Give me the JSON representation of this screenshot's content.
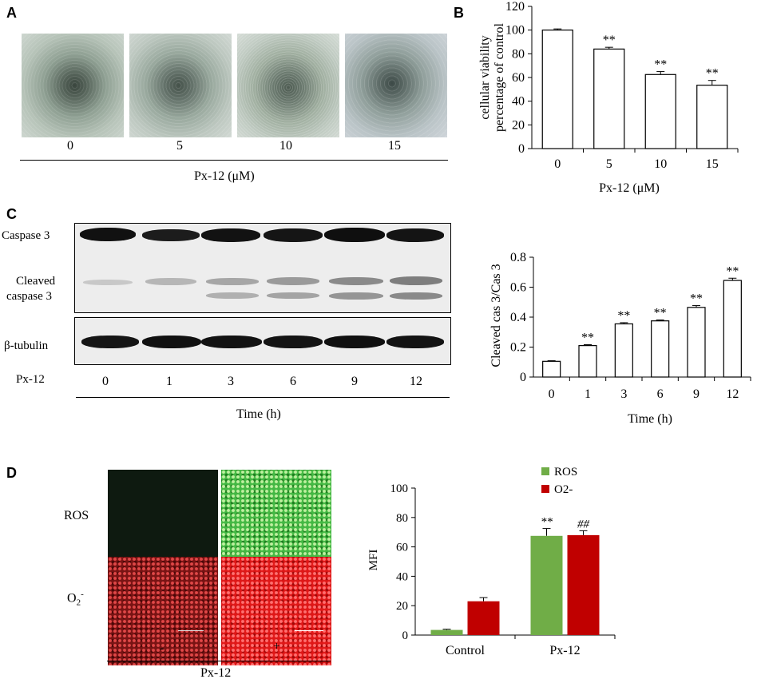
{
  "panels": {
    "a": {
      "letter": "A",
      "doses": [
        "0",
        "5",
        "10",
        "15"
      ],
      "axis_label": "Px-12 (μM)"
    },
    "c": {
      "letter": "C",
      "labels": {
        "caspase3": "Caspase 3",
        "cleaved_line1": "Cleaved",
        "cleaved_line2": "caspase 3",
        "tubulin": "β-tubulin",
        "px12": "Px-12"
      },
      "times": [
        "0",
        "1",
        "3",
        "6",
        "9",
        "12"
      ],
      "axis_label": "Time (h)"
    },
    "d": {
      "letter": "D",
      "rows": [
        "ROS",
        "O"
      ],
      "row2_sub": "2",
      "row2_sup": "-",
      "treatments": [
        "-",
        "+"
      ],
      "axis_label": "Px-12"
    }
  },
  "chart_data": [
    {
      "id": "B",
      "type": "bar",
      "letter": "B",
      "categories": [
        "0",
        "5",
        "10",
        "15"
      ],
      "values": [
        100,
        84,
        62.5,
        53.5
      ],
      "errors": [
        1,
        1.5,
        2.5,
        4
      ],
      "annotations": [
        "",
        "**",
        "**",
        "**"
      ],
      "ylabel_line1": "cellular viability",
      "ylabel_line2": "percentage of control",
      "xlabel": "Px-12 (μM)",
      "ylim": [
        0,
        120
      ],
      "yticks": [
        "0",
        "20",
        "40",
        "60",
        "80",
        "100",
        "120"
      ],
      "grid": false,
      "bar_color": "#ffffff"
    },
    {
      "id": "C",
      "type": "bar",
      "categories": [
        "0",
        "1",
        "3",
        "6",
        "9",
        "12"
      ],
      "values": [
        0.105,
        0.21,
        0.355,
        0.375,
        0.465,
        0.645
      ],
      "errors": [
        0.004,
        0.006,
        0.008,
        0.006,
        0.012,
        0.015
      ],
      "annotations": [
        "",
        "**",
        "**",
        "**",
        "**",
        "**"
      ],
      "ylabel": "Cleaved cas 3/Cas 3",
      "xlabel": "Time (h)",
      "ylim": [
        0,
        0.8
      ],
      "yticks": [
        "0",
        "0.2",
        "0.4",
        "0.6",
        "0.8"
      ],
      "grid": false,
      "bar_color": "#ffffff"
    },
    {
      "id": "D",
      "type": "bar",
      "categories": [
        "Control",
        "Px-12"
      ],
      "series": [
        {
          "name": "ROS",
          "values": [
            3.5,
            67.5
          ],
          "errors": [
            0.5,
            5
          ],
          "annotations": [
            "",
            "**"
          ],
          "color": "#70ad47"
        },
        {
          "name": "O2-",
          "values": [
            23,
            68
          ],
          "errors": [
            2.5,
            3
          ],
          "annotations": [
            "",
            "##"
          ],
          "color": "#c00000"
        }
      ],
      "ylabel": "MFI",
      "ylim": [
        0,
        100
      ],
      "yticks": [
        "0",
        "20",
        "40",
        "60",
        "80",
        "100"
      ],
      "legend_position": "top-right",
      "grid": false
    }
  ]
}
